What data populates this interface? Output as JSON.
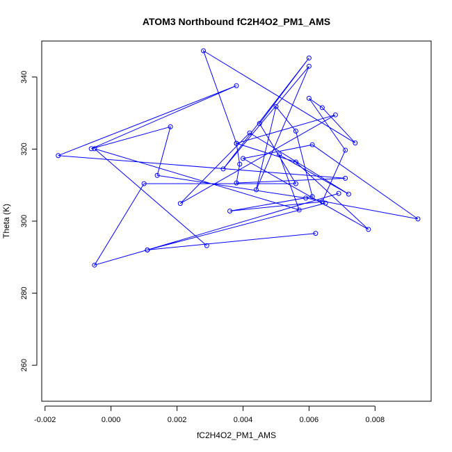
{
  "chart_data": {
    "type": "line",
    "title": "ATOM3 Northbound fC2H4O2_PM1_AMS",
    "xlabel": "fC2H4O2_PM1_AMS",
    "ylabel": "Theta (K)",
    "xlim": [
      -0.0021,
      0.0097
    ],
    "ylim": [
      250,
      350
    ],
    "x_ticks": [
      -0.002,
      0.0,
      0.002,
      0.004,
      0.006,
      0.008
    ],
    "x_tick_labels": [
      "-0.002",
      "0.000",
      "0.002",
      "0.004",
      "0.006",
      "0.008"
    ],
    "y_ticks": [
      260,
      280,
      300,
      320,
      340
    ],
    "y_tick_labels": [
      "260",
      "280",
      "300",
      "320",
      "340"
    ],
    "grid": false,
    "markers": "open-circle",
    "series": [
      {
        "color": "#0000ff",
        "points": [
          [
            0.0062,
            296.6
          ],
          [
            0.0011,
            292.0
          ],
          [
            0.0069,
            307.7
          ],
          [
            0.0011,
            292.0
          ],
          [
            0.0065,
            305.0
          ],
          [
            0.0011,
            292.0
          ],
          [
            -0.0005,
            287.8
          ],
          [
            0.001,
            310.4
          ],
          [
            0.0056,
            310.4
          ],
          [
            0.0045,
            327.1
          ],
          [
            0.006,
            345.3
          ],
          [
            0.0034,
            314.5
          ],
          [
            0.006,
            343.0
          ],
          [
            0.0044,
            308.7
          ],
          [
            0.005,
            331.8
          ],
          [
            0.0056,
            325.0
          ],
          [
            0.0061,
            306.8
          ],
          [
            0.0036,
            302.8
          ],
          [
            0.0064,
            305.4
          ],
          [
            0.0071,
            319.7
          ],
          [
            0.006,
            334.1
          ],
          [
            0.0064,
            331.5
          ],
          [
            0.0074,
            321.7
          ],
          [
            0.0028,
            347.3
          ],
          [
            0.0038,
            321.6
          ],
          [
            0.0039,
            315.8
          ],
          [
            0.0038,
            310.6
          ],
          [
            0.0071,
            311.9
          ],
          [
            -0.0016,
            318.2
          ],
          [
            0.0038,
            337.6
          ],
          [
            -0.0006,
            320.1
          ],
          [
            0.0018,
            326.2
          ],
          [
            0.0014,
            312.7
          ],
          [
            0.0059,
            306.4
          ],
          [
            0.0093,
            300.6
          ],
          [
            0.0061,
            321.2
          ],
          [
            0.004,
            317.4
          ],
          [
            0.0078,
            297.7
          ],
          [
            0.0056,
            316.4
          ],
          [
            0.0038,
            321.6
          ],
          [
            0.0068,
            329.5
          ],
          [
            0.0021,
            304.9
          ],
          [
            0.0042,
            324.5
          ],
          [
            0.0072,
            307.5
          ],
          [
            0.0051,
            318.4
          ],
          [
            0.0057,
            303.1
          ],
          [
            -0.0005,
            320.1
          ],
          [
            0.0029,
            293.2
          ]
        ]
      }
    ]
  }
}
